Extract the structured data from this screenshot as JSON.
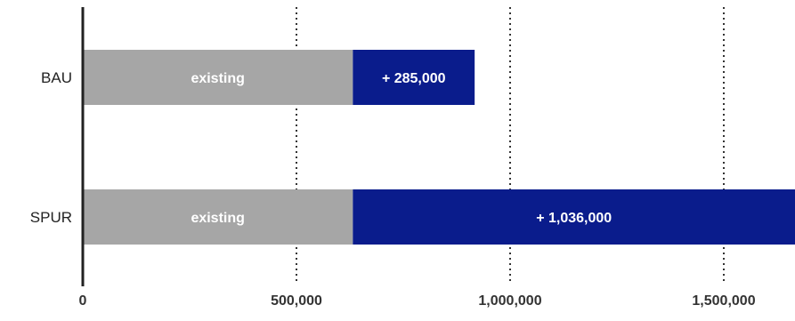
{
  "chart_data": {
    "type": "bar",
    "orientation": "horizontal",
    "stacked": true,
    "categories": [
      "BAU",
      "SPUR"
    ],
    "series": [
      {
        "values": [
          632000,
          632000
        ],
        "labels": [
          "existing",
          "existing"
        ],
        "color": "#a6a6a6"
      },
      {
        "values": [
          285000,
          1036000
        ],
        "labels": [
          "+ 285,000",
          "+ 1,036,000"
        ],
        "color": "#0a1c8c"
      }
    ],
    "x_ticks": [
      0,
      500000,
      1000000,
      1500000
    ],
    "x_tick_labels": [
      "0",
      "500,000",
      "1,000,000",
      "1,500,000"
    ],
    "xlim": [
      0,
      1660000
    ],
    "grid": "vertical-dotted",
    "title": "",
    "xlabel": "",
    "ylabel": ""
  }
}
